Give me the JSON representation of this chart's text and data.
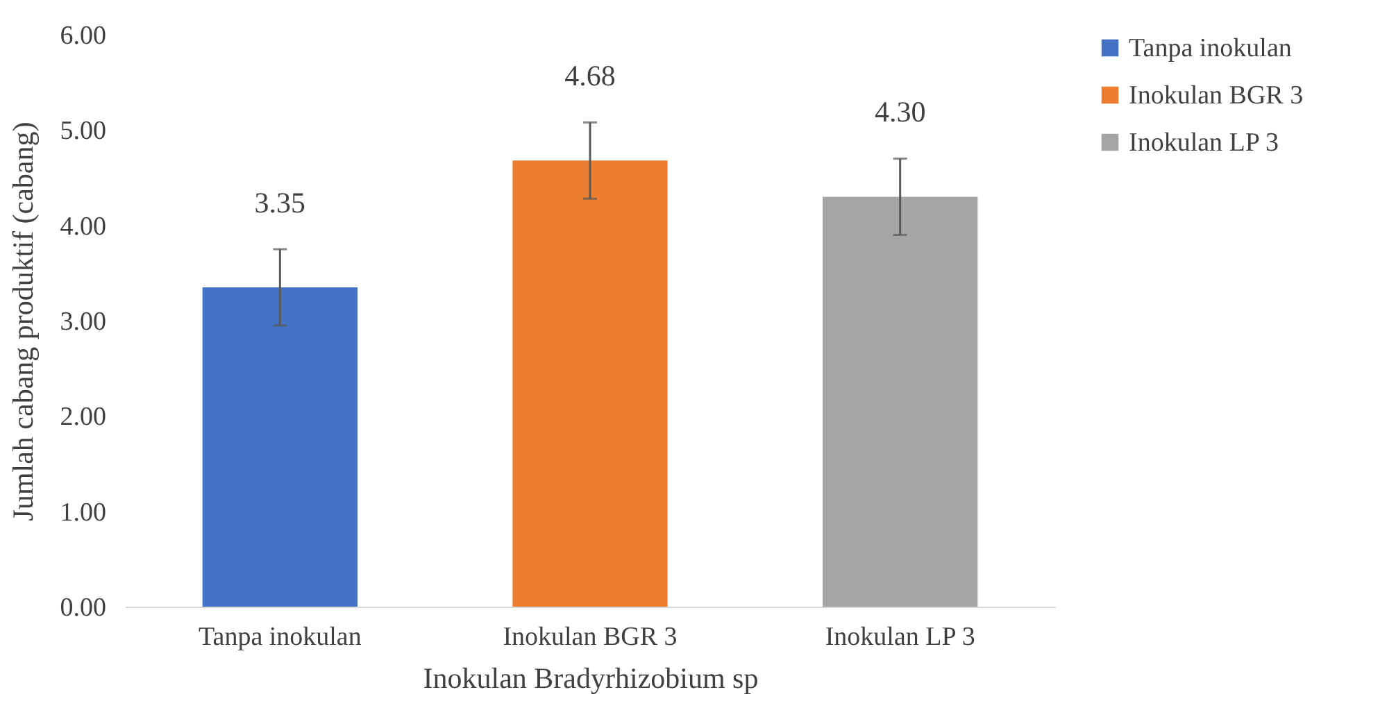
{
  "chart_data": {
    "type": "bar",
    "xlabel": "Inokulan Bradyrhizobium sp",
    "ylabel": "Jumlah cabang produktif (cabang)",
    "categories": [
      "Tanpa inokulan",
      "Inokulan BGR 3",
      "Inokulan LP 3"
    ],
    "series": [
      {
        "name": "Tanpa inokulan",
        "color": "#4472c4",
        "values": [
          3.35,
          null,
          null
        ],
        "errors": [
          0.4,
          null,
          null
        ],
        "value_labels": [
          "3.35",
          null,
          null
        ]
      },
      {
        "name": "Inokulan BGR 3",
        "color": "#ed7d31",
        "values": [
          null,
          4.68,
          null
        ],
        "errors": [
          null,
          0.4,
          null
        ],
        "value_labels": [
          null,
          "4.68",
          null
        ]
      },
      {
        "name": "Inokulan LP 3",
        "color": "#a5a5a5",
        "values": [
          null,
          null,
          4.3
        ],
        "errors": [
          null,
          null,
          0.4
        ],
        "value_labels": [
          null,
          null,
          "4.30"
        ]
      }
    ],
    "ylim": [
      0,
      6
    ],
    "yticks": [
      {
        "value": 0,
        "label": "0.00"
      },
      {
        "value": 1,
        "label": "1.00"
      },
      {
        "value": 2,
        "label": "2.00"
      },
      {
        "value": 3,
        "label": "3.00"
      },
      {
        "value": 4,
        "label": "4.00"
      },
      {
        "value": 5,
        "label": "5.00"
      },
      {
        "value": 6,
        "label": "6.00"
      }
    ],
    "legend": "right"
  }
}
